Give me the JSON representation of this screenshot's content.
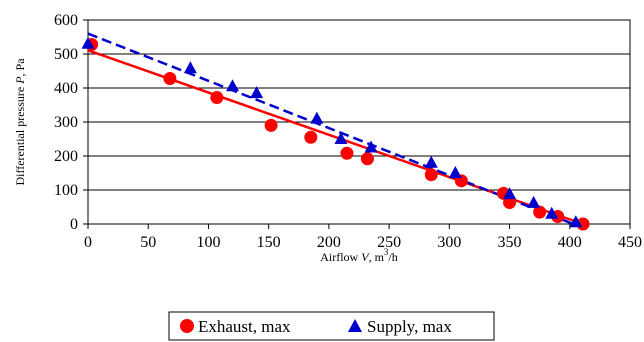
{
  "chart_data": {
    "type": "scatter",
    "xlabel_prefix": "Airflow ",
    "xlabel_var": "V",
    "xlabel_unit_pre": ", m",
    "xlabel_unit_sup": "3",
    "xlabel_unit_post": "/h",
    "ylabel_prefix": "Differential pressure ",
    "ylabel_var": "P",
    "ylabel_unit": ", Pa",
    "xlim": [
      0,
      450
    ],
    "ylim": [
      0,
      600
    ],
    "xticks": [
      0,
      50,
      100,
      150,
      200,
      250,
      300,
      350,
      400,
      450
    ],
    "yticks": [
      0,
      100,
      200,
      300,
      400,
      500,
      600
    ],
    "grid": "horizontal",
    "legend_position": "bottom",
    "series": [
      {
        "name": "Exhaust, max",
        "marker": "circle",
        "color": "#ff0000",
        "points": [
          [
            3,
            528
          ],
          [
            68,
            428
          ],
          [
            107,
            372
          ],
          [
            152,
            290
          ],
          [
            185,
            255
          ],
          [
            215,
            208
          ],
          [
            232,
            192
          ],
          [
            285,
            145
          ],
          [
            310,
            127
          ],
          [
            345,
            90
          ],
          [
            350,
            63
          ],
          [
            375,
            35
          ],
          [
            390,
            22
          ],
          [
            411,
            0
          ]
        ],
        "trendline": {
          "style": "solid",
          "x": [
            0,
            411
          ],
          "y": [
            511,
            0
          ]
        }
      },
      {
        "name": "Supply, max",
        "marker": "triangle",
        "color": "#0000cc",
        "points": [
          [
            0,
            530
          ],
          [
            85,
            458
          ],
          [
            120,
            405
          ],
          [
            140,
            385
          ],
          [
            190,
            310
          ],
          [
            210,
            250
          ],
          [
            235,
            225
          ],
          [
            285,
            180
          ],
          [
            305,
            150
          ],
          [
            350,
            88
          ],
          [
            370,
            62
          ],
          [
            385,
            30
          ],
          [
            405,
            5
          ]
        ],
        "trendline": {
          "style": "dashed",
          "x": [
            0,
            403
          ],
          "y": [
            560,
            0
          ]
        }
      }
    ]
  }
}
